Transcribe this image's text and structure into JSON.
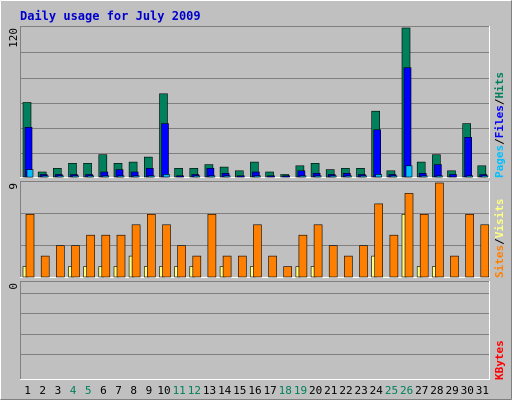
{
  "chart_data": {
    "title": "Daily usage for July 2009",
    "days": [
      "1",
      "2",
      "3",
      "4",
      "5",
      "6",
      "7",
      "8",
      "9",
      "10",
      "11",
      "12",
      "13",
      "14",
      "15",
      "16",
      "17",
      "18",
      "19",
      "20",
      "21",
      "22",
      "23",
      "24",
      "25",
      "26",
      "27",
      "28",
      "29",
      "30",
      "31"
    ],
    "weekend_days": [
      "4",
      "5",
      "11",
      "12",
      "18",
      "19",
      "25",
      "26"
    ],
    "colors": {
      "background": "#C0C0C0",
      "title": "#0000CC",
      "weekday_label": "#000000",
      "weekend_label": "#00805C",
      "hits": "#00805C",
      "files": "#0000FF",
      "pages": "#00C0FF",
      "visits": "#FFFF80",
      "sites": "#FF8000",
      "kbytes": "#FF0000",
      "grid": "#808080"
    },
    "panels": [
      {
        "type": "bar",
        "name": "hits-files-pages",
        "ymax_label": "120",
        "ymax": 120,
        "legend": [
          {
            "text": "Pages",
            "color_key": "pages"
          },
          {
            "text": "/",
            "color_key": "weekday_label"
          },
          {
            "text": "Files",
            "color_key": "files"
          },
          {
            "text": "/",
            "color_key": "weekday_label"
          },
          {
            "text": "Hits",
            "color_key": "hits"
          }
        ],
        "series": [
          {
            "name": "Hits",
            "color_key": "hits",
            "values": [
              60,
              4,
              7,
              11,
              11,
              18,
              11,
              12,
              16,
              67,
              7,
              7,
              10,
              8,
              5,
              12,
              4,
              2,
              9,
              11,
              6,
              7,
              7,
              53,
              5,
              120,
              12,
              18,
              5,
              43,
              9
            ]
          },
          {
            "name": "Files",
            "color_key": "files",
            "values": [
              40,
              2,
              2,
              2,
              2,
              4,
              6,
              4,
              7,
              43,
              1,
              2,
              7,
              3,
              1,
              4,
              1,
              1,
              5,
              3,
              2,
              3,
              2,
              38,
              2,
              88,
              3,
              10,
              2,
              32,
              2
            ]
          },
          {
            "name": "Pages",
            "color_key": "pages",
            "values": [
              6,
              1,
              1,
              1,
              1,
              1,
              1,
              1,
              1,
              2,
              0,
              1,
              1,
              1,
              0,
              1,
              0,
              0,
              1,
              1,
              1,
              1,
              1,
              2,
              1,
              9,
              1,
              1,
              0,
              1,
              1
            ]
          }
        ]
      },
      {
        "type": "bar",
        "name": "visits-sites",
        "ymax_label": "9",
        "ymax": 9,
        "legend": [
          {
            "text": "Sites",
            "color_key": "sites"
          },
          {
            "text": "/",
            "color_key": "weekday_label"
          },
          {
            "text": "Visits",
            "color_key": "visits"
          }
        ],
        "series": [
          {
            "name": "Visits",
            "color_key": "visits",
            "values": [
              1,
              0,
              0,
              1,
              1,
              1,
              1,
              2,
              1,
              1,
              1,
              1,
              0,
              1,
              0,
              1,
              0,
              0,
              1,
              1,
              0,
              0,
              0,
              2,
              0,
              6,
              1,
              1,
              0,
              0,
              0
            ]
          },
          {
            "name": "Sites",
            "color_key": "sites",
            "values": [
              6,
              2,
              3,
              3,
              4,
              4,
              4,
              5,
              6,
              5,
              3,
              2,
              6,
              2,
              2,
              5,
              2,
              1,
              4,
              5,
              3,
              2,
              3,
              7,
              4,
              8,
              6,
              9,
              2,
              6,
              5
            ]
          }
        ]
      },
      {
        "type": "bar",
        "name": "kbytes",
        "ymax_label": "0",
        "ymax": 0,
        "legend": [
          {
            "text": "KBytes",
            "color_key": "kbytes"
          }
        ],
        "series": [
          {
            "name": "KBytes",
            "color_key": "kbytes",
            "values": []
          }
        ]
      }
    ]
  }
}
